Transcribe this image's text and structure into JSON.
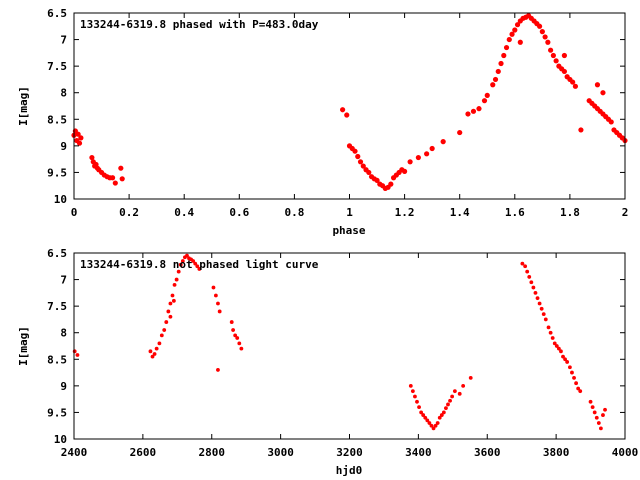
{
  "chart_data": [
    {
      "type": "scatter",
      "title": "133244-6319.8 phased with P=483.0day",
      "xlabel": "phase",
      "ylabel": "I[mag]",
      "xlim": [
        0,
        2
      ],
      "ylim": [
        10,
        6.5
      ],
      "y_inverted": true,
      "xticks": [
        "0",
        "0.2",
        "0.4",
        "0.6",
        "0.8",
        "1",
        "1.2",
        "1.4",
        "1.6",
        "1.8",
        "2"
      ],
      "yticks": [
        "6.5",
        "7",
        "7.5",
        "8",
        "8.5",
        "9",
        "9.5",
        "10"
      ],
      "marker_color": "#ff0000",
      "points": [
        [
          0.0,
          8.8
        ],
        [
          0.005,
          8.72
        ],
        [
          0.01,
          8.9
        ],
        [
          0.015,
          8.78
        ],
        [
          0.02,
          8.95
        ],
        [
          0.025,
          8.85
        ],
        [
          0.065,
          9.22
        ],
        [
          0.07,
          9.3
        ],
        [
          0.075,
          9.38
        ],
        [
          0.08,
          9.35
        ],
        [
          0.085,
          9.42
        ],
        [
          0.09,
          9.45
        ],
        [
          0.1,
          9.5
        ],
        [
          0.11,
          9.55
        ],
        [
          0.12,
          9.58
        ],
        [
          0.13,
          9.6
        ],
        [
          0.14,
          9.6
        ],
        [
          0.15,
          9.7
        ],
        [
          0.17,
          9.42
        ],
        [
          0.175,
          9.62
        ],
        [
          0.975,
          8.32
        ],
        [
          0.99,
          8.42
        ],
        [
          1.0,
          9.0
        ],
        [
          1.01,
          9.05
        ],
        [
          1.02,
          9.1
        ],
        [
          1.03,
          9.2
        ],
        [
          1.04,
          9.3
        ],
        [
          1.05,
          9.38
        ],
        [
          1.06,
          9.45
        ],
        [
          1.07,
          9.5
        ],
        [
          1.08,
          9.58
        ],
        [
          1.09,
          9.62
        ],
        [
          1.1,
          9.65
        ],
        [
          1.11,
          9.72
        ],
        [
          1.12,
          9.75
        ],
        [
          1.13,
          9.8
        ],
        [
          1.14,
          9.78
        ],
        [
          1.15,
          9.72
        ],
        [
          1.16,
          9.6
        ],
        [
          1.17,
          9.55
        ],
        [
          1.18,
          9.5
        ],
        [
          1.19,
          9.45
        ],
        [
          1.2,
          9.48
        ],
        [
          1.22,
          9.3
        ],
        [
          1.25,
          9.22
        ],
        [
          1.28,
          9.15
        ],
        [
          1.3,
          9.05
        ],
        [
          1.34,
          8.92
        ],
        [
          1.4,
          8.75
        ],
        [
          1.43,
          8.4
        ],
        [
          1.45,
          8.35
        ],
        [
          1.47,
          8.3
        ],
        [
          1.49,
          8.15
        ],
        [
          1.5,
          8.05
        ],
        [
          1.52,
          7.85
        ],
        [
          1.53,
          7.75
        ],
        [
          1.54,
          7.6
        ],
        [
          1.55,
          7.45
        ],
        [
          1.56,
          7.3
        ],
        [
          1.57,
          7.15
        ],
        [
          1.58,
          7.0
        ],
        [
          1.59,
          6.9
        ],
        [
          1.6,
          6.82
        ],
        [
          1.61,
          6.72
        ],
        [
          1.62,
          6.65
        ],
        [
          1.63,
          6.6
        ],
        [
          1.64,
          6.58
        ],
        [
          1.65,
          6.55
        ],
        [
          1.66,
          6.6
        ],
        [
          1.67,
          6.65
        ],
        [
          1.68,
          6.7
        ],
        [
          1.69,
          6.75
        ],
        [
          1.7,
          6.85
        ],
        [
          1.71,
          6.95
        ],
        [
          1.72,
          7.05
        ],
        [
          1.73,
          7.2
        ],
        [
          1.74,
          7.3
        ],
        [
          1.75,
          7.4
        ],
        [
          1.76,
          7.5
        ],
        [
          1.77,
          7.55
        ],
        [
          1.78,
          7.6
        ],
        [
          1.79,
          7.7
        ],
        [
          1.8,
          7.75
        ],
        [
          1.81,
          7.8
        ],
        [
          1.82,
          7.88
        ],
        [
          1.62,
          7.05
        ],
        [
          1.78,
          7.3
        ],
        [
          1.84,
          8.7
        ],
        [
          1.87,
          8.15
        ],
        [
          1.88,
          8.2
        ],
        [
          1.89,
          8.25
        ],
        [
          1.9,
          8.3
        ],
        [
          1.91,
          8.35
        ],
        [
          1.92,
          8.4
        ],
        [
          1.93,
          8.45
        ],
        [
          1.94,
          8.5
        ],
        [
          1.95,
          8.55
        ],
        [
          1.9,
          7.85
        ],
        [
          1.92,
          8.0
        ],
        [
          1.96,
          8.7
        ],
        [
          1.97,
          8.75
        ],
        [
          1.98,
          8.8
        ],
        [
          1.99,
          8.85
        ],
        [
          2.0,
          8.9
        ]
      ]
    },
    {
      "type": "scatter",
      "title": "133244-6319.8 not phased light curve",
      "xlabel": "hjd0",
      "ylabel": "I[mag]",
      "xlim": [
        2400,
        4000
      ],
      "ylim": [
        10,
        6.5
      ],
      "y_inverted": true,
      "xticks": [
        "2400",
        "2600",
        "2800",
        "3000",
        "3200",
        "3400",
        "3600",
        "3800",
        "4000"
      ],
      "yticks": [
        "6.5",
        "7",
        "7.5",
        "8",
        "8.5",
        "9",
        "9.5",
        "10"
      ],
      "marker_color": "#ff0000",
      "points": [
        [
          2402,
          8.35
        ],
        [
          2410,
          8.42
        ],
        [
          2622,
          8.35
        ],
        [
          2628,
          8.45
        ],
        [
          2634,
          8.4
        ],
        [
          2640,
          8.3
        ],
        [
          2648,
          8.2
        ],
        [
          2655,
          8.05
        ],
        [
          2662,
          7.95
        ],
        [
          2668,
          7.8
        ],
        [
          2674,
          7.6
        ],
        [
          2680,
          7.45
        ],
        [
          2686,
          7.3
        ],
        [
          2692,
          7.1
        ],
        [
          2698,
          7.0
        ],
        [
          2704,
          6.85
        ],
        [
          2710,
          6.72
        ],
        [
          2716,
          6.65
        ],
        [
          2722,
          6.58
        ],
        [
          2728,
          6.55
        ],
        [
          2734,
          6.6
        ],
        [
          2740,
          6.62
        ],
        [
          2746,
          6.65
        ],
        [
          2752,
          6.7
        ],
        [
          2758,
          6.75
        ],
        [
          2764,
          6.8
        ],
        [
          2680,
          7.7
        ],
        [
          2690,
          7.4
        ],
        [
          2805,
          7.15
        ],
        [
          2812,
          7.3
        ],
        [
          2818,
          7.45
        ],
        [
          2823,
          7.6
        ],
        [
          2818,
          8.7
        ],
        [
          2858,
          7.8
        ],
        [
          2862,
          7.95
        ],
        [
          2868,
          8.05
        ],
        [
          2874,
          8.1
        ],
        [
          2880,
          8.2
        ],
        [
          2886,
          8.3
        ],
        [
          3378,
          9.0
        ],
        [
          3384,
          9.1
        ],
        [
          3390,
          9.2
        ],
        [
          3396,
          9.3
        ],
        [
          3402,
          9.4
        ],
        [
          3408,
          9.5
        ],
        [
          3414,
          9.55
        ],
        [
          3420,
          9.6
        ],
        [
          3426,
          9.65
        ],
        [
          3432,
          9.7
        ],
        [
          3438,
          9.75
        ],
        [
          3444,
          9.8
        ],
        [
          3450,
          9.75
        ],
        [
          3456,
          9.7
        ],
        [
          3462,
          9.6
        ],
        [
          3468,
          9.55
        ],
        [
          3474,
          9.5
        ],
        [
          3480,
          9.42
        ],
        [
          3486,
          9.35
        ],
        [
          3492,
          9.28
        ],
        [
          3498,
          9.2
        ],
        [
          3506,
          9.1
        ],
        [
          3520,
          9.15
        ],
        [
          3530,
          9.0
        ],
        [
          3552,
          8.85
        ],
        [
          3702,
          6.7
        ],
        [
          3710,
          6.75
        ],
        [
          3716,
          6.85
        ],
        [
          3722,
          6.95
        ],
        [
          3728,
          7.05
        ],
        [
          3734,
          7.15
        ],
        [
          3740,
          7.25
        ],
        [
          3746,
          7.35
        ],
        [
          3752,
          7.45
        ],
        [
          3758,
          7.55
        ],
        [
          3764,
          7.65
        ],
        [
          3770,
          7.75
        ],
        [
          3778,
          7.9
        ],
        [
          3784,
          8.0
        ],
        [
          3790,
          8.1
        ],
        [
          3796,
          8.2
        ],
        [
          3802,
          8.25
        ],
        [
          3808,
          8.3
        ],
        [
          3814,
          8.35
        ],
        [
          3820,
          8.45
        ],
        [
          3826,
          8.5
        ],
        [
          3832,
          8.55
        ],
        [
          3840,
          8.65
        ],
        [
          3846,
          8.75
        ],
        [
          3852,
          8.85
        ],
        [
          3858,
          8.95
        ],
        [
          3864,
          9.05
        ],
        [
          3870,
          9.1
        ],
        [
          3900,
          9.3
        ],
        [
          3906,
          9.4
        ],
        [
          3912,
          9.5
        ],
        [
          3918,
          9.6
        ],
        [
          3924,
          9.7
        ],
        [
          3930,
          9.8
        ],
        [
          3936,
          9.55
        ],
        [
          3942,
          9.45
        ]
      ]
    }
  ]
}
